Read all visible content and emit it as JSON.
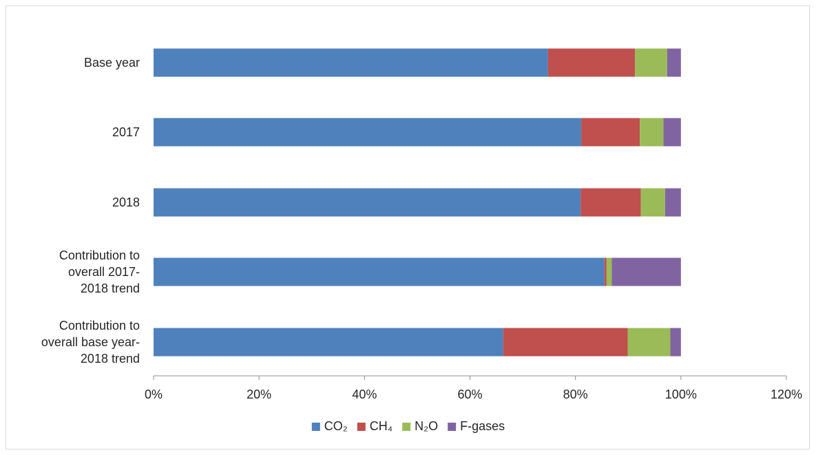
{
  "chart_data": {
    "type": "bar",
    "orientation": "horizontal",
    "stacked": true,
    "categories": [
      [
        "Base year"
      ],
      [
        "2017"
      ],
      [
        "2018"
      ],
      [
        "Contribution to",
        "overall 2017-",
        "2018 trend"
      ],
      [
        "Contribution to",
        "overall base year-",
        "2018 trend"
      ]
    ],
    "series": [
      {
        "name": "CO₂",
        "color": "#4f81bd",
        "values": [
          74.8,
          81.1,
          81.0,
          85.5,
          66.3
        ]
      },
      {
        "name": "CH₄",
        "color": "#c0504d",
        "values": [
          16.5,
          11.1,
          11.4,
          0.4,
          23.6
        ]
      },
      {
        "name": "N₂O",
        "color": "#9bbb59",
        "values": [
          6.1,
          4.5,
          4.6,
          1.0,
          8.1
        ]
      },
      {
        "name": "F-gases",
        "color": "#8064a2",
        "values": [
          2.6,
          3.3,
          3.0,
          13.1,
          2.0
        ]
      }
    ],
    "xticks": [
      "0%",
      "20%",
      "40%",
      "60%",
      "80%",
      "100%",
      "120%"
    ],
    "xlim": [
      0,
      120
    ],
    "legend_position": "bottom",
    "grid": false
  }
}
